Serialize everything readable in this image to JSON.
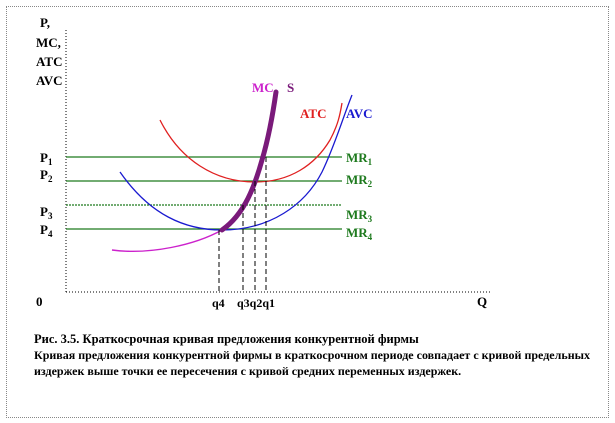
{
  "axes": {
    "y_label_lines": [
      "P,",
      "MC,",
      "ATC",
      "AVC"
    ],
    "x_label": "Q",
    "origin": "0"
  },
  "price_levels": [
    {
      "price": "P",
      "sub": "1",
      "mr": "MR",
      "mr_sub": "1"
    },
    {
      "price": "P",
      "sub": "2",
      "mr": "MR",
      "mr_sub": "2"
    },
    {
      "price": "P",
      "sub": "3",
      "mr": "MR",
      "mr_sub": "3"
    },
    {
      "price": "P",
      "sub": "4",
      "mr": "MR",
      "mr_sub": "4"
    }
  ],
  "quantities": [
    "q4",
    "q3q2q1"
  ],
  "curves": {
    "mc": "MC",
    "s": "S",
    "atc": "ATC",
    "avc": "AVC"
  },
  "colors": {
    "mc": "#cc22cc",
    "supply": "#7a1a7a",
    "atc": "#e02020",
    "avc": "#1a1ad0",
    "mr": "#1e7a1e",
    "axis": "#000000"
  },
  "caption": {
    "title": "Рис. 3.5. Краткосрочная  кривая предложения конкурентной  фирмы",
    "body": "Кривая предложения конкурентной  фирмы в краткосрочном периоде совпадает с кривой предельных издержек выше точки ее пересечения с кривой  средних переменных издержек."
  }
}
